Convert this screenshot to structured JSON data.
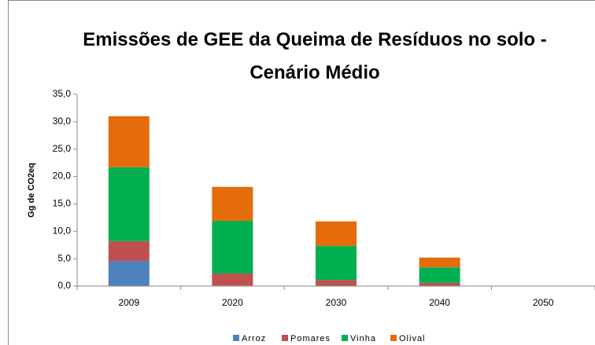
{
  "chart_data": {
    "type": "stacked_bar",
    "title": "Emissões de GEE da Queima de Resíduos no solo - Cenário Médio",
    "y_label": "Gg de CO2eq",
    "categories": [
      "2009",
      "2020",
      "2030",
      "2040",
      "2050"
    ],
    "series": [
      {
        "name": "Arroz",
        "color": "#4f81bd",
        "values": [
          4.6,
          0.1,
          0,
          0,
          0
        ]
      },
      {
        "name": "Pomares",
        "color": "#c0504d",
        "values": [
          3.6,
          2.2,
          1.1,
          0.6,
          0
        ]
      },
      {
        "name": "Vinha",
        "color": "#00b050",
        "values": [
          13.5,
          9.6,
          6.2,
          2.8,
          0
        ]
      },
      {
        "name": "Olival",
        "color": "#e46c0a",
        "values": [
          9.3,
          6.2,
          4.5,
          1.8,
          0
        ]
      }
    ],
    "ylim": [
      0,
      35
    ],
    "yticks": [
      {
        "value": 0,
        "label": "0,0"
      },
      {
        "value": 5,
        "label": "5,0"
      },
      {
        "value": 10,
        "label": "10,0"
      },
      {
        "value": 15,
        "label": "15,0"
      },
      {
        "value": 20,
        "label": "20,0"
      },
      {
        "value": 25,
        "label": "25,0"
      },
      {
        "value": 30,
        "label": "30,0"
      },
      {
        "value": 35,
        "label": "35,0"
      }
    ],
    "grid": false,
    "legend": "bottom"
  }
}
